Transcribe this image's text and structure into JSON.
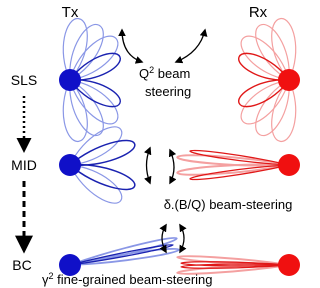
{
  "labels": {
    "tx": "Tx",
    "rx": "Rx"
  },
  "stages": [
    "SLS",
    "MID",
    "BC"
  ],
  "annotations": [
    {
      "symbol": "Q",
      "exponent": "2",
      "line1": " beam",
      "line2": "steering"
    },
    {
      "text": "δ.(B/Q) beam-steering"
    },
    {
      "symbol": "γ",
      "exponent": "2",
      "line1": " fine-grained beam-steering"
    }
  ]
}
